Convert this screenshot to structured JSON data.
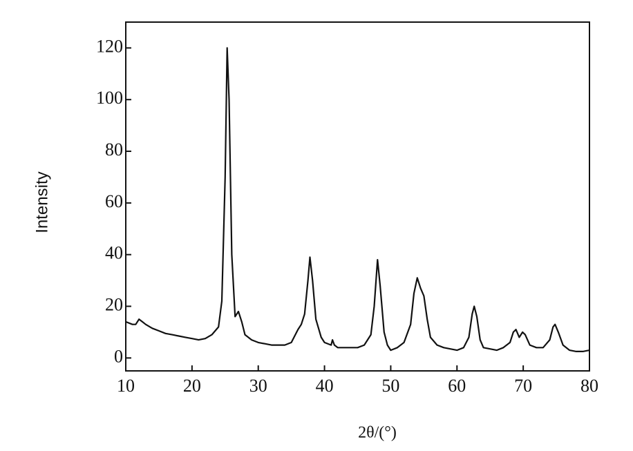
{
  "chart_data": {
    "type": "line",
    "xlabel": "2θ/(°)",
    "ylabel": "Intensity",
    "x": [
      10,
      11,
      11.5,
      12,
      12.5,
      13,
      14,
      15,
      16,
      17,
      18,
      19,
      20,
      21,
      22,
      23,
      24,
      24.5,
      25,
      25.3,
      25.6,
      26,
      26.5,
      27,
      27.5,
      28,
      29,
      30,
      31,
      32,
      33,
      34,
      35,
      36,
      36.5,
      37,
      37.5,
      37.8,
      38.2,
      38.7,
      39.5,
      40,
      41,
      41.2,
      41.5,
      42,
      43,
      44,
      45,
      46,
      47,
      47.5,
      48,
      48.4,
      49,
      49.5,
      50,
      51,
      52,
      53,
      53.5,
      54,
      54.5,
      55,
      55.5,
      56,
      57,
      58,
      59,
      60,
      61,
      61.8,
      62.3,
      62.6,
      63,
      63.5,
      64,
      65,
      66,
      67,
      68,
      68.5,
      68.9,
      69.4,
      69.9,
      70.3,
      71,
      72,
      73,
      74,
      74.5,
      74.8,
      75.3,
      76,
      77,
      78,
      79,
      80
    ],
    "values": [
      14,
      13,
      13,
      15,
      14,
      13,
      11.5,
      10.5,
      9.5,
      9,
      8.5,
      8,
      7.5,
      7,
      7.5,
      9,
      12,
      22,
      70,
      120,
      100,
      40,
      16,
      18,
      14,
      9,
      7,
      6,
      5.5,
      5,
      5,
      5,
      6,
      11,
      13,
      17,
      30,
      39,
      30,
      15,
      8,
      6,
      5,
      7,
      5,
      4,
      4,
      4,
      4,
      5,
      9,
      20,
      38,
      28,
      10,
      5,
      3,
      4,
      6,
      13,
      25,
      31,
      27,
      24,
      15,
      8,
      5,
      4,
      3.5,
      3,
      4,
      8,
      17,
      20,
      16,
      7,
      4,
      3.5,
      3,
      4,
      6,
      10,
      11,
      8,
      10,
      9,
      5,
      4,
      4,
      7,
      12,
      13,
      10,
      5,
      3,
      2.5,
      2.5,
      3
    ],
    "color": "#111111",
    "xlim": [
      10,
      80
    ],
    "ylim": [
      -5,
      130
    ],
    "xticks": [
      10,
      20,
      30,
      40,
      50,
      60,
      70,
      80
    ],
    "yticks": [
      0,
      20,
      40,
      60,
      80,
      100,
      120
    ],
    "grid": false
  }
}
